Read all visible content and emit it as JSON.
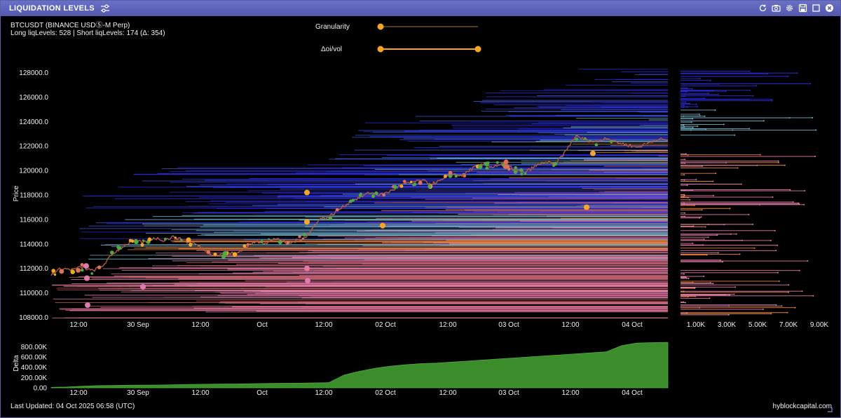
{
  "window": {
    "title": "LIQUIDATION LEVELS",
    "icons": [
      "tune-icon",
      "refresh-icon",
      "camera-icon",
      "gear-icon",
      "save-icon",
      "fullscreen-icon",
      "close-icon"
    ]
  },
  "header": {
    "symbol": "BTCUSDT (BINANCE USDⓈ-M Perp)",
    "levels_text": "Long liqLevels: 528 | Short liqLevels: 174 (Δ: 354)"
  },
  "controls": {
    "granularity_label": "Granularity",
    "granularity_value": 0.0,
    "oivol_label": "Δoi/vol",
    "oivol_range": [
      0.0,
      1.0
    ]
  },
  "colors": {
    "accent": "#f5a623",
    "titlebar": "#5c60b8",
    "delta_fill": "#3a8d2a",
    "long_levels": "#e37aa8",
    "long_levels_orange": "#e8823a",
    "short_levels": "#2a2adf",
    "short_levels_teal": "#6fb0c8"
  },
  "footer": {
    "last_updated": "Last Updated: 04 Oct 2025 06:58 (UTC)",
    "brand": "hyblockcapital.com"
  },
  "chart_data": [
    {
      "type": "line",
      "ylabel": "Price",
      "yticks": [
        "108000.0",
        "110000.0",
        "112000.0",
        "114000.0",
        "116000.0",
        "118000.0",
        "120000.0",
        "122000.0",
        "124000.0",
        "126000.0",
        "128000.0"
      ],
      "ylim": [
        107800,
        128600
      ],
      "xticks": [
        "12:00",
        "30 Sep",
        "12:00",
        "Oct",
        "12:00",
        "02 Oct",
        "12:00",
        "03 Oct",
        "12:00",
        "04 Oct"
      ],
      "series": [
        {
          "values": [
            111500,
            112000,
            111900,
            112100,
            111800,
            112200,
            113200,
            113800,
            114300,
            114100,
            114500,
            114300,
            114600,
            114200,
            114000,
            113500,
            113000,
            113300,
            113200,
            113800,
            114200,
            114100,
            114500,
            114000,
            114300,
            114700,
            116000,
            116200,
            116800,
            117400,
            117800,
            118200,
            118000,
            118300,
            118800,
            119000,
            119200,
            118900,
            119200,
            119700,
            119600,
            120200,
            120500,
            120300,
            120600,
            120100,
            119800,
            120300,
            120700,
            120500,
            121500,
            122800,
            122500,
            122300,
            122700,
            122300,
            122100,
            121900,
            122200,
            122600,
            122400
          ]
        }
      ],
      "liquidation_levels": {
        "long_count": 528,
        "short_count": 174
      }
    },
    {
      "type": "bar",
      "title": "",
      "xticks": [
        "1.00K",
        "3.00K",
        "5.00K",
        "7.00K",
        "9.00K"
      ],
      "xlim": [
        0,
        10000
      ]
    },
    {
      "type": "area",
      "ylabel": "Delta",
      "yticks": [
        "0.00",
        "200.00K",
        "400.00K",
        "600.00K",
        "800.00K"
      ],
      "ylim": [
        0,
        900000
      ],
      "xticks": [
        "12:00",
        "30 Sep",
        "12:00",
        "Oct",
        "12:00",
        "02 Oct",
        "12:00",
        "03 Oct",
        "12:00",
        "04 Oct"
      ],
      "series": [
        {
          "values": [
            10000,
            15000,
            30000,
            42000,
            45000,
            50000,
            52000,
            55000,
            60000,
            65000,
            70000,
            72000,
            75000,
            80000,
            85000,
            88000,
            90000,
            95000,
            100000,
            250000,
            320000,
            380000,
            420000,
            450000,
            470000,
            480000,
            500000,
            520000,
            540000,
            560000,
            580000,
            600000,
            620000,
            640000,
            660000,
            680000,
            700000,
            820000,
            870000,
            880000,
            885000
          ]
        }
      ]
    }
  ]
}
